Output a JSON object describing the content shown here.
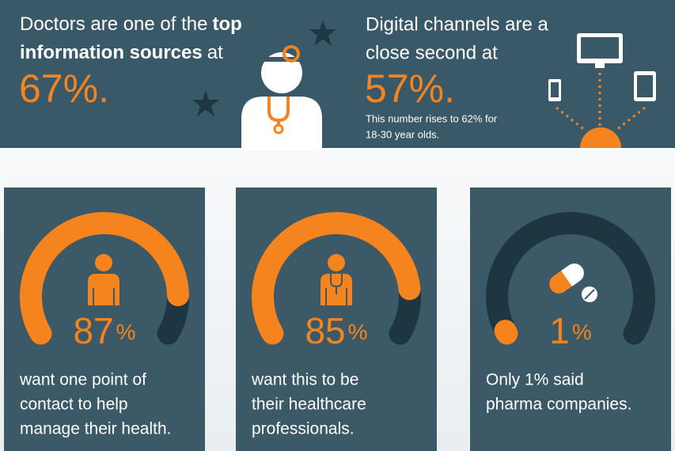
{
  "banner": {
    "left": {
      "line1": [
        "Doctors are one of the",
        "top"
      ],
      "line2": [
        "information sources",
        "at"
      ],
      "figure": "67%."
    },
    "right": {
      "lines": [
        "Digital channels are a",
        "close second at"
      ],
      "figure": "57%.",
      "note": [
        "This number rises to 62% for",
        "18-30 year olds."
      ]
    }
  },
  "cards": [
    {
      "percent": 87,
      "unit": "%",
      "lines": [
        "want one point of",
        "contact to help",
        "manage their health."
      ]
    },
    {
      "percent": 85,
      "unit": "%",
      "lines": [
        "want this to be",
        "their healthcare",
        "professionals."
      ]
    },
    {
      "percent": 1,
      "unit": "%",
      "lines": [
        "Only 1% said",
        "pharma companies."
      ]
    }
  ]
}
